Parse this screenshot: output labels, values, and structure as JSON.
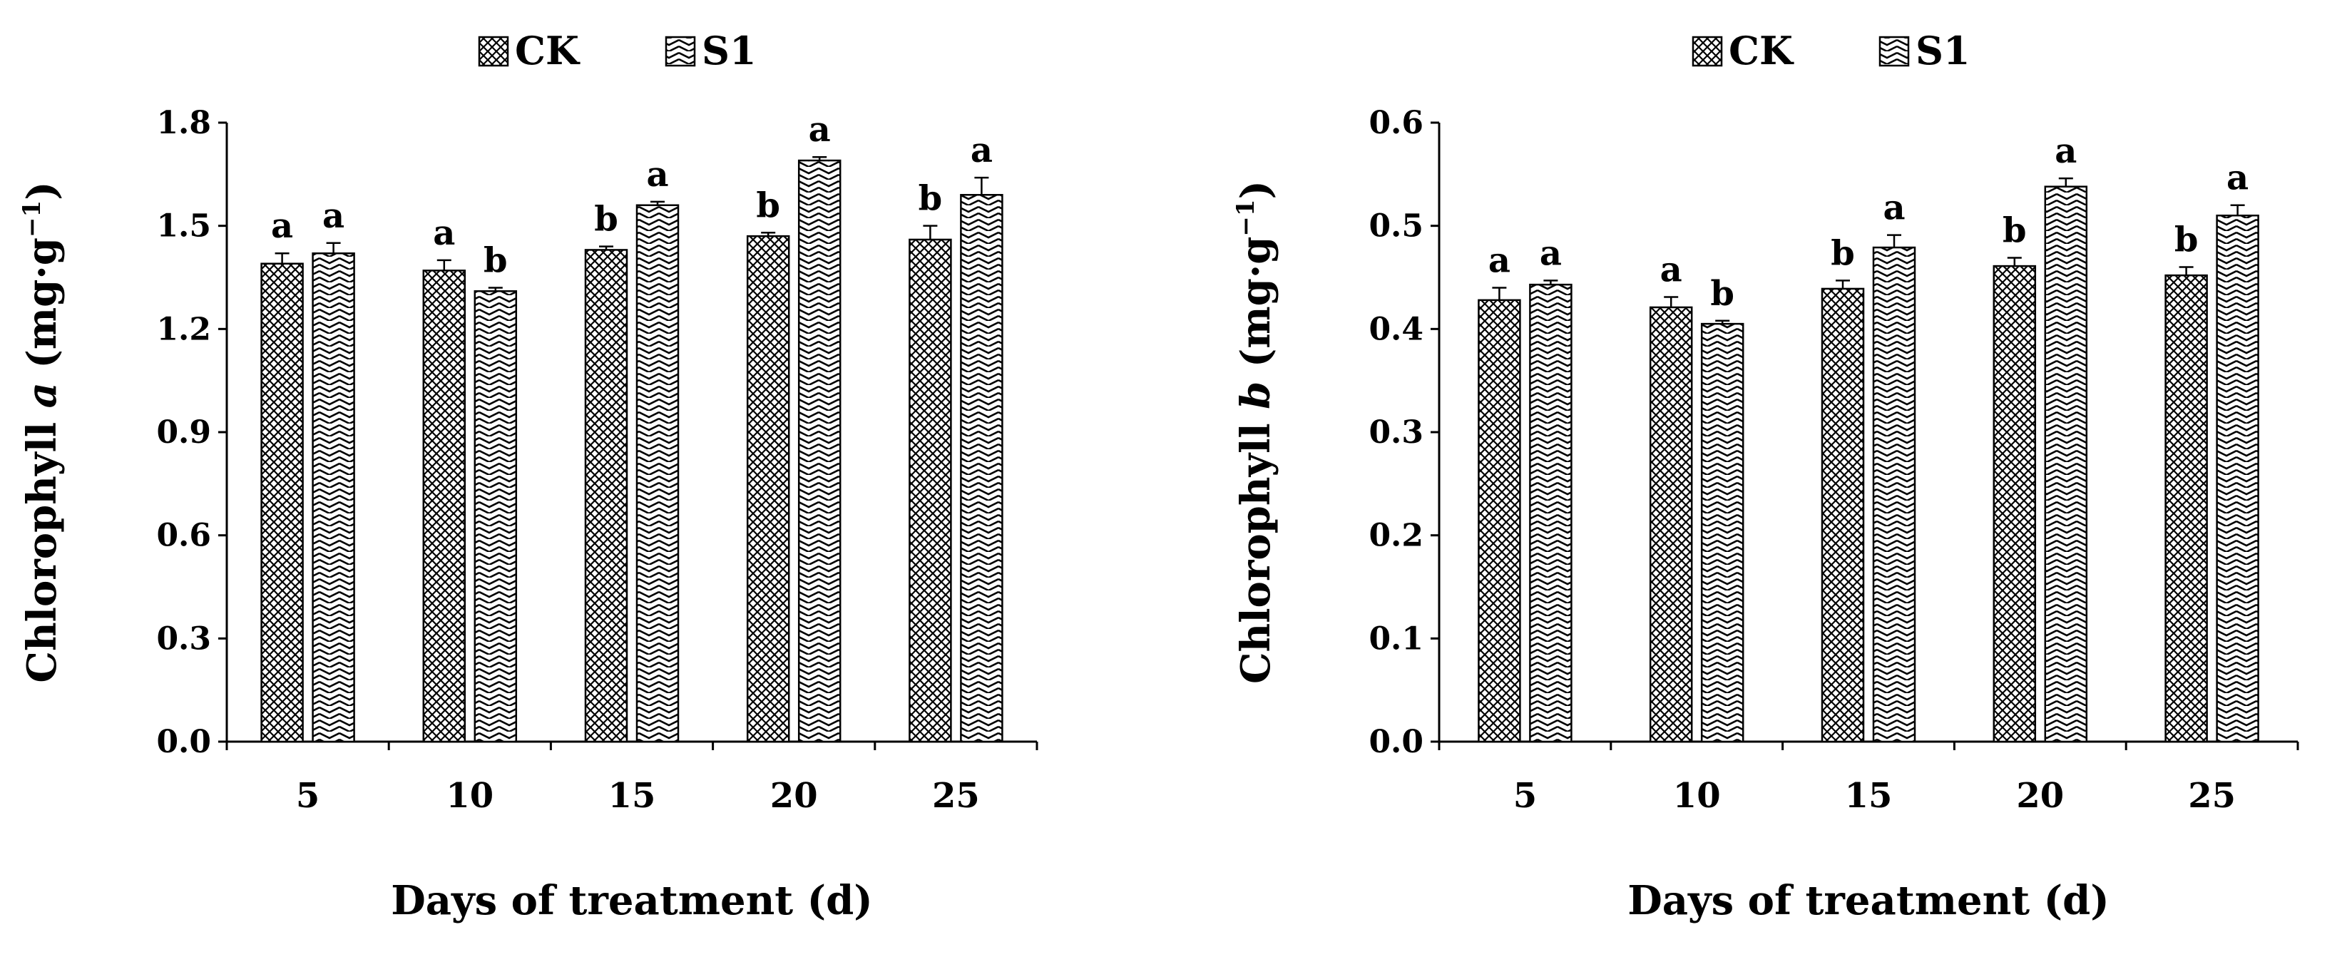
{
  "chart_data": [
    {
      "type": "bar",
      "categories": [
        "5",
        "10",
        "15",
        "20",
        "25"
      ],
      "series": [
        {
          "name": "CK",
          "pattern": "crosshatch",
          "values": [
            1.39,
            1.37,
            1.43,
            1.47,
            1.46
          ],
          "errors": [
            0.03,
            0.03,
            0.01,
            0.01,
            0.04
          ],
          "letters": [
            "a",
            "a",
            "b",
            "b",
            "b"
          ]
        },
        {
          "name": "S1",
          "pattern": "zigzag",
          "values": [
            1.42,
            1.31,
            1.56,
            1.69,
            1.59
          ],
          "errors": [
            0.03,
            0.01,
            0.01,
            0.01,
            0.05
          ],
          "letters": [
            "a",
            "b",
            "a",
            "a",
            "a"
          ]
        }
      ],
      "xlabel": "Days of treatment (d)",
      "ylabel": {
        "prefix": "Chlorophyll ",
        "italic": "a",
        "unit": " (mg·g",
        "sup": "−1",
        "close": ")"
      },
      "ylim": [
        0.0,
        1.8
      ],
      "yticks": [
        "0.0",
        "0.3",
        "0.6",
        "0.9",
        "1.2",
        "1.5",
        "1.8"
      ],
      "grid": false,
      "legend_position": "top"
    },
    {
      "type": "bar",
      "categories": [
        "5",
        "10",
        "15",
        "20",
        "25"
      ],
      "series": [
        {
          "name": "CK",
          "pattern": "crosshatch",
          "values": [
            0.428,
            0.421,
            0.439,
            0.461,
            0.452
          ],
          "errors": [
            0.012,
            0.01,
            0.008,
            0.008,
            0.008
          ],
          "letters": [
            "a",
            "a",
            "b",
            "b",
            "b"
          ]
        },
        {
          "name": "S1",
          "pattern": "zigzag",
          "values": [
            0.443,
            0.405,
            0.479,
            0.538,
            0.51
          ],
          "errors": [
            0.004,
            0.003,
            0.012,
            0.008,
            0.01
          ],
          "letters": [
            "a",
            "b",
            "a",
            "a",
            "a"
          ]
        }
      ],
      "xlabel": "Days of treatment (d)",
      "ylabel": {
        "prefix": "Chlorophyll ",
        "italic": "b",
        "unit": " (mg·g",
        "sup": "−1",
        "close": ")"
      },
      "ylim": [
        0.0,
        0.6
      ],
      "yticks": [
        "0.0",
        "0.1",
        "0.2",
        "0.3",
        "0.4",
        "0.5",
        "0.6"
      ],
      "grid": false,
      "legend_position": "top"
    }
  ]
}
